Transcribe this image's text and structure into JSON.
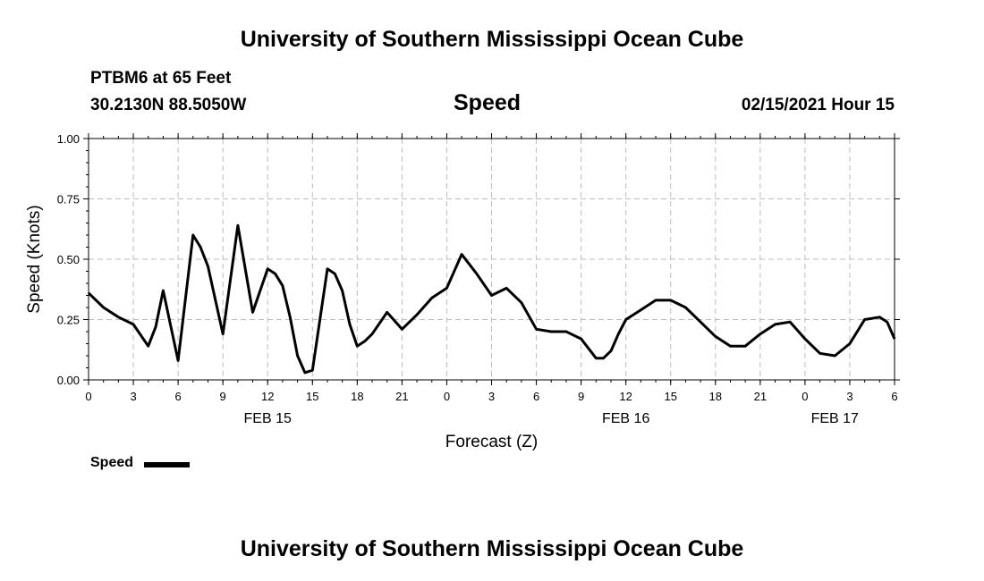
{
  "header": {
    "title": "University of Southern Mississippi Ocean Cube",
    "station": "PTBM6 at 65 Feet",
    "coords": "30.2130N 88.5050W",
    "plot_title": "Speed",
    "datetime": "02/15/2021 Hour 15"
  },
  "footer": {
    "title": "University of Southern Mississippi Ocean Cube"
  },
  "legend": {
    "label": "Speed"
  },
  "chart_data": {
    "type": "line",
    "ylabel": "Speed (Knots)",
    "xlabel": "Forecast (Z)",
    "ylim": [
      0,
      1
    ],
    "xlim": [
      0,
      54
    ],
    "grid": true,
    "legend_position": "bottom-left",
    "yticks": [
      "0.00",
      "0.25",
      "0.50",
      "0.75",
      "1.00"
    ],
    "xtick_labels": [
      "0",
      "3",
      "6",
      "9",
      "12",
      "15",
      "18",
      "21",
      "0",
      "3",
      "6",
      "9",
      "12",
      "15",
      "18",
      "21",
      "0",
      "3",
      "6"
    ],
    "date_labels": [
      {
        "label": "FEB 15",
        "hour": 12
      },
      {
        "label": "FEB 16",
        "hour": 36
      },
      {
        "label": "FEB 17",
        "hour": 50
      }
    ],
    "line_color": "#000000",
    "series": [
      {
        "name": "Speed",
        "x": [
          0,
          1,
          2,
          3,
          4,
          4.5,
          5,
          6,
          7,
          7.5,
          8,
          9,
          10,
          11,
          12,
          12.5,
          13,
          13.5,
          14,
          14.5,
          15,
          16,
          16.5,
          17,
          17.5,
          18,
          18.5,
          19,
          20,
          21,
          22,
          23,
          24,
          25,
          26,
          27,
          28,
          29,
          30,
          31,
          32,
          33,
          34,
          34.5,
          35,
          35.5,
          36,
          37,
          38,
          39,
          40,
          41,
          42,
          43,
          44,
          45,
          46,
          47,
          48,
          49,
          50,
          51,
          52,
          53,
          53.5,
          54
        ],
        "y": [
          0.36,
          0.3,
          0.26,
          0.23,
          0.14,
          0.22,
          0.37,
          0.08,
          0.6,
          0.55,
          0.47,
          0.19,
          0.64,
          0.28,
          0.46,
          0.44,
          0.39,
          0.26,
          0.1,
          0.03,
          0.04,
          0.46,
          0.44,
          0.37,
          0.23,
          0.14,
          0.16,
          0.19,
          0.28,
          0.21,
          0.27,
          0.34,
          0.38,
          0.52,
          0.44,
          0.35,
          0.38,
          0.32,
          0.21,
          0.2,
          0.2,
          0.17,
          0.09,
          0.09,
          0.12,
          0.19,
          0.25,
          0.29,
          0.33,
          0.33,
          0.3,
          0.24,
          0.18,
          0.14,
          0.14,
          0.19,
          0.23,
          0.24,
          0.17,
          0.11,
          0.1,
          0.15,
          0.25,
          0.26,
          0.24,
          0.17
        ]
      }
    ]
  }
}
